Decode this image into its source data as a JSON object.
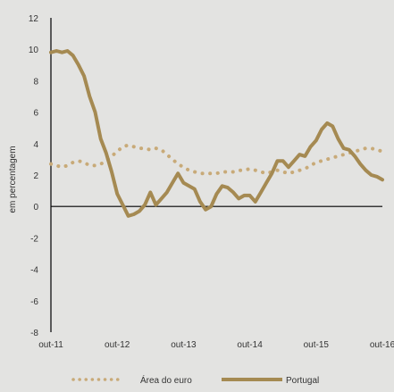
{
  "chart_data": {
    "type": "line",
    "ylabel": "em percentagem",
    "ylim": [
      -8,
      12
    ],
    "yticks": [
      12,
      10,
      8,
      6,
      4,
      2,
      0,
      -2,
      -4,
      -6,
      -8
    ],
    "xlim": [
      0,
      60
    ],
    "xticks": [
      {
        "x": 0,
        "label": "out-11"
      },
      {
        "x": 12,
        "label": "out-12"
      },
      {
        "x": 24,
        "label": "out-13"
      },
      {
        "x": 36,
        "label": "out-14"
      },
      {
        "x": 48,
        "label": "out-15"
      },
      {
        "x": 60,
        "label": "out-16"
      }
    ],
    "grid": false,
    "legend_position": "bottom",
    "series": [
      {
        "name": "Área do euro",
        "style": "dotted",
        "color": "#c8aa78",
        "x": [
          0,
          1,
          2,
          3,
          4,
          5,
          6,
          7,
          8,
          9,
          10,
          11,
          12,
          13,
          14,
          15,
          16,
          17,
          18,
          19,
          20,
          21,
          22,
          23,
          24,
          25,
          26,
          27,
          28,
          29,
          30,
          31,
          32,
          33,
          34,
          35,
          36,
          37,
          38,
          39,
          40,
          41,
          42,
          43,
          44,
          45,
          46,
          47,
          48,
          49,
          50,
          51,
          52,
          53,
          54,
          55,
          56,
          57,
          58,
          59,
          60
        ],
        "values": [
          2.7,
          2.6,
          2.5,
          2.6,
          2.8,
          2.9,
          2.8,
          2.6,
          2.6,
          2.7,
          2.9,
          3.2,
          3.5,
          3.8,
          3.9,
          3.8,
          3.7,
          3.7,
          3.6,
          3.7,
          3.6,
          3.3,
          3.0,
          2.7,
          2.5,
          2.3,
          2.2,
          2.1,
          2.1,
          2.1,
          2.1,
          2.2,
          2.2,
          2.2,
          2.3,
          2.3,
          2.4,
          2.3,
          2.2,
          2.1,
          2.2,
          2.3,
          2.2,
          2.1,
          2.2,
          2.3,
          2.4,
          2.6,
          2.8,
          2.9,
          3.0,
          3.1,
          3.2,
          3.3,
          3.4,
          3.5,
          3.6,
          3.7,
          3.7,
          3.6,
          3.5
        ]
      },
      {
        "name": "Portugal",
        "style": "solid",
        "color": "#a58a52",
        "x": [
          0,
          1,
          2,
          3,
          4,
          5,
          6,
          7,
          8,
          9,
          10,
          11,
          12,
          13,
          14,
          15,
          16,
          17,
          18,
          19,
          20,
          21,
          22,
          23,
          24,
          25,
          26,
          27,
          28,
          29,
          30,
          31,
          32,
          33,
          34,
          35,
          36,
          37,
          38,
          39,
          40,
          41,
          42,
          43,
          44,
          45,
          46,
          47,
          48,
          49,
          50,
          51,
          52,
          53,
          54,
          55,
          56,
          57,
          58,
          59,
          60
        ],
        "values": [
          9.8,
          9.9,
          9.8,
          9.9,
          9.6,
          9.0,
          8.3,
          7.0,
          6.0,
          4.3,
          3.4,
          2.2,
          0.8,
          0.1,
          -0.6,
          -0.5,
          -0.3,
          0.1,
          0.9,
          0.1,
          0.5,
          0.9,
          1.5,
          2.1,
          1.5,
          1.3,
          1.1,
          0.3,
          -0.2,
          0.0,
          0.8,
          1.3,
          1.2,
          0.9,
          0.5,
          0.7,
          0.7,
          0.3,
          0.9,
          1.5,
          2.1,
          2.9,
          2.9,
          2.5,
          2.9,
          3.3,
          3.2,
          3.8,
          4.2,
          4.9,
          5.3,
          5.1,
          4.3,
          3.7,
          3.6,
          3.2,
          2.7,
          2.3,
          2.0,
          1.9,
          1.7
        ]
      }
    ]
  }
}
